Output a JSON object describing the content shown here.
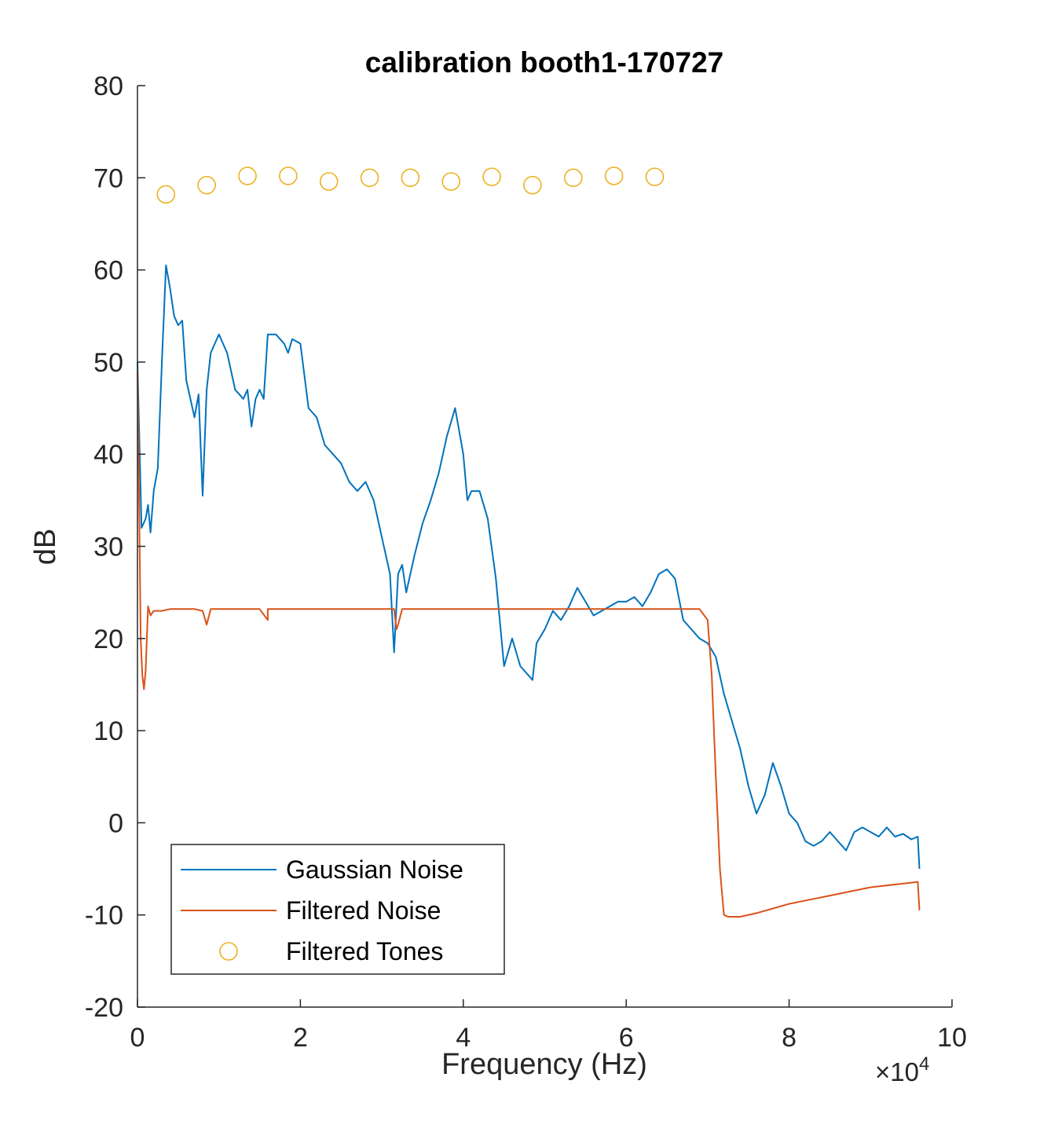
{
  "chart_data": {
    "type": "line",
    "title": "calibration booth1-170727",
    "xlabel": "Frequency (Hz)",
    "ylabel": "dB",
    "x_exponent_label": "×10",
    "x_exponent_power": "4",
    "xlim": [
      0,
      10
    ],
    "ylim": [
      -20,
      80
    ],
    "x_ticks": [
      0,
      2,
      4,
      6,
      8,
      10
    ],
    "x_tick_labels": [
      "0",
      "2",
      "4",
      "6",
      "8",
      "10"
    ],
    "y_ticks": [
      -20,
      -10,
      0,
      10,
      20,
      30,
      40,
      50,
      60,
      70,
      80
    ],
    "y_tick_labels": [
      "-20",
      "-10",
      "0",
      "10",
      "20",
      "30",
      "40",
      "50",
      "60",
      "70",
      "80"
    ],
    "grid": false,
    "legend_position": "bottom-left",
    "series": [
      {
        "name": "Gaussian Noise",
        "style": "line",
        "color": "#0072BD",
        "x": [
          0.0,
          0.05,
          0.1,
          0.13,
          0.16,
          0.2,
          0.25,
          0.3,
          0.35,
          0.4,
          0.45,
          0.5,
          0.55,
          0.6,
          0.65,
          0.7,
          0.75,
          0.8,
          0.85,
          0.9,
          0.95,
          1.0,
          1.05,
          1.1,
          1.2,
          1.3,
          1.35,
          1.4,
          1.45,
          1.5,
          1.55,
          1.6,
          1.7,
          1.8,
          1.85,
          1.9,
          2.0,
          2.1,
          2.2,
          2.3,
          2.4,
          2.5,
          2.6,
          2.7,
          2.8,
          2.9,
          3.0,
          3.1,
          3.15,
          3.2,
          3.25,
          3.3,
          3.4,
          3.5,
          3.6,
          3.7,
          3.8,
          3.9,
          4.0,
          4.05,
          4.1,
          4.2,
          4.3,
          4.4,
          4.5,
          4.6,
          4.7,
          4.8,
          4.85,
          4.9,
          5.0,
          5.1,
          5.2,
          5.3,
          5.4,
          5.5,
          5.6,
          5.7,
          5.8,
          5.9,
          6.0,
          6.1,
          6.2,
          6.3,
          6.4,
          6.5,
          6.6,
          6.7,
          6.8,
          6.9,
          7.0,
          7.1,
          7.2,
          7.3,
          7.4,
          7.5,
          7.6,
          7.7,
          7.8,
          7.9,
          8.0,
          8.1,
          8.2,
          8.3,
          8.4,
          8.5,
          8.6,
          8.7,
          8.8,
          8.9,
          9.0,
          9.1,
          9.2,
          9.3,
          9.4,
          9.5,
          9.58,
          9.6
        ],
        "y": [
          50,
          32,
          33,
          34.5,
          31.5,
          36,
          38.5,
          50,
          60.5,
          58,
          55,
          54,
          54.5,
          48,
          46,
          44,
          46.5,
          35.5,
          47,
          51,
          52,
          53,
          52,
          51,
          47,
          46,
          47,
          43,
          46,
          47,
          46,
          53,
          53,
          52,
          51,
          52.5,
          52,
          45,
          44,
          41,
          40,
          39,
          37,
          36,
          37,
          35,
          31,
          27,
          18.5,
          27,
          28,
          25,
          29,
          32.5,
          35,
          38,
          42,
          45,
          40,
          35,
          36,
          36,
          33,
          26.5,
          17,
          20,
          17,
          16,
          15.5,
          19.5,
          21,
          23,
          22,
          23.5,
          25.5,
          24,
          22.5,
          23,
          23.5,
          24,
          24,
          24.5,
          23.5,
          25,
          27,
          27.5,
          26.5,
          22,
          21,
          20,
          19.5,
          18,
          14,
          11,
          8,
          4,
          1,
          3,
          6.5,
          4,
          1,
          0,
          -2,
          -2.5,
          -2,
          -1,
          -2,
          -3,
          -1,
          -0.5,
          -1,
          -1.5,
          -0.5,
          -1.5,
          -1.2,
          -1.8,
          -1.5,
          -5
        ]
      },
      {
        "name": "Filtered Noise",
        "style": "line",
        "color": "#D95319",
        "x": [
          0.0,
          0.02,
          0.04,
          0.06,
          0.08,
          0.1,
          0.13,
          0.16,
          0.2,
          0.25,
          0.3,
          0.4,
          0.5,
          0.7,
          0.8,
          0.85,
          0.9,
          1.0,
          1.5,
          1.6,
          1.6,
          2.0,
          3.0,
          3.15,
          3.18,
          3.2,
          3.25,
          3.3,
          4.0,
          5.0,
          6.0,
          6.5,
          6.9,
          7.0,
          7.05,
          7.1,
          7.15,
          7.2,
          7.25,
          7.4,
          7.6,
          7.8,
          8.0,
          8.5,
          9.0,
          9.5,
          9.58,
          9.6
        ],
        "y": [
          49,
          35,
          20,
          16,
          14.5,
          16.5,
          23.5,
          22.5,
          23,
          23,
          23,
          23.2,
          23.2,
          23.2,
          23,
          21.5,
          23.2,
          23.2,
          23.2,
          22,
          23.2,
          23.2,
          23.2,
          23.2,
          21,
          21.5,
          23.2,
          23.2,
          23.2,
          23.2,
          23.2,
          23.2,
          23.2,
          22,
          16,
          5,
          -5,
          -10,
          -10.2,
          -10.2,
          -9.8,
          -9.3,
          -8.8,
          -7.9,
          -7,
          -6.5,
          -6.4,
          -9.5
        ]
      },
      {
        "name": "Filtered Tones",
        "style": "marker",
        "color": "#EDB120",
        "x": [
          0.35,
          0.85,
          1.35,
          1.85,
          2.35,
          2.85,
          3.35,
          3.85,
          4.35,
          4.85,
          5.35,
          5.85,
          6.35
        ],
        "y": [
          68.2,
          69.2,
          70.2,
          70.2,
          69.6,
          70.0,
          70.0,
          69.6,
          70.1,
          69.2,
          70.0,
          70.2,
          70.1
        ]
      }
    ]
  }
}
